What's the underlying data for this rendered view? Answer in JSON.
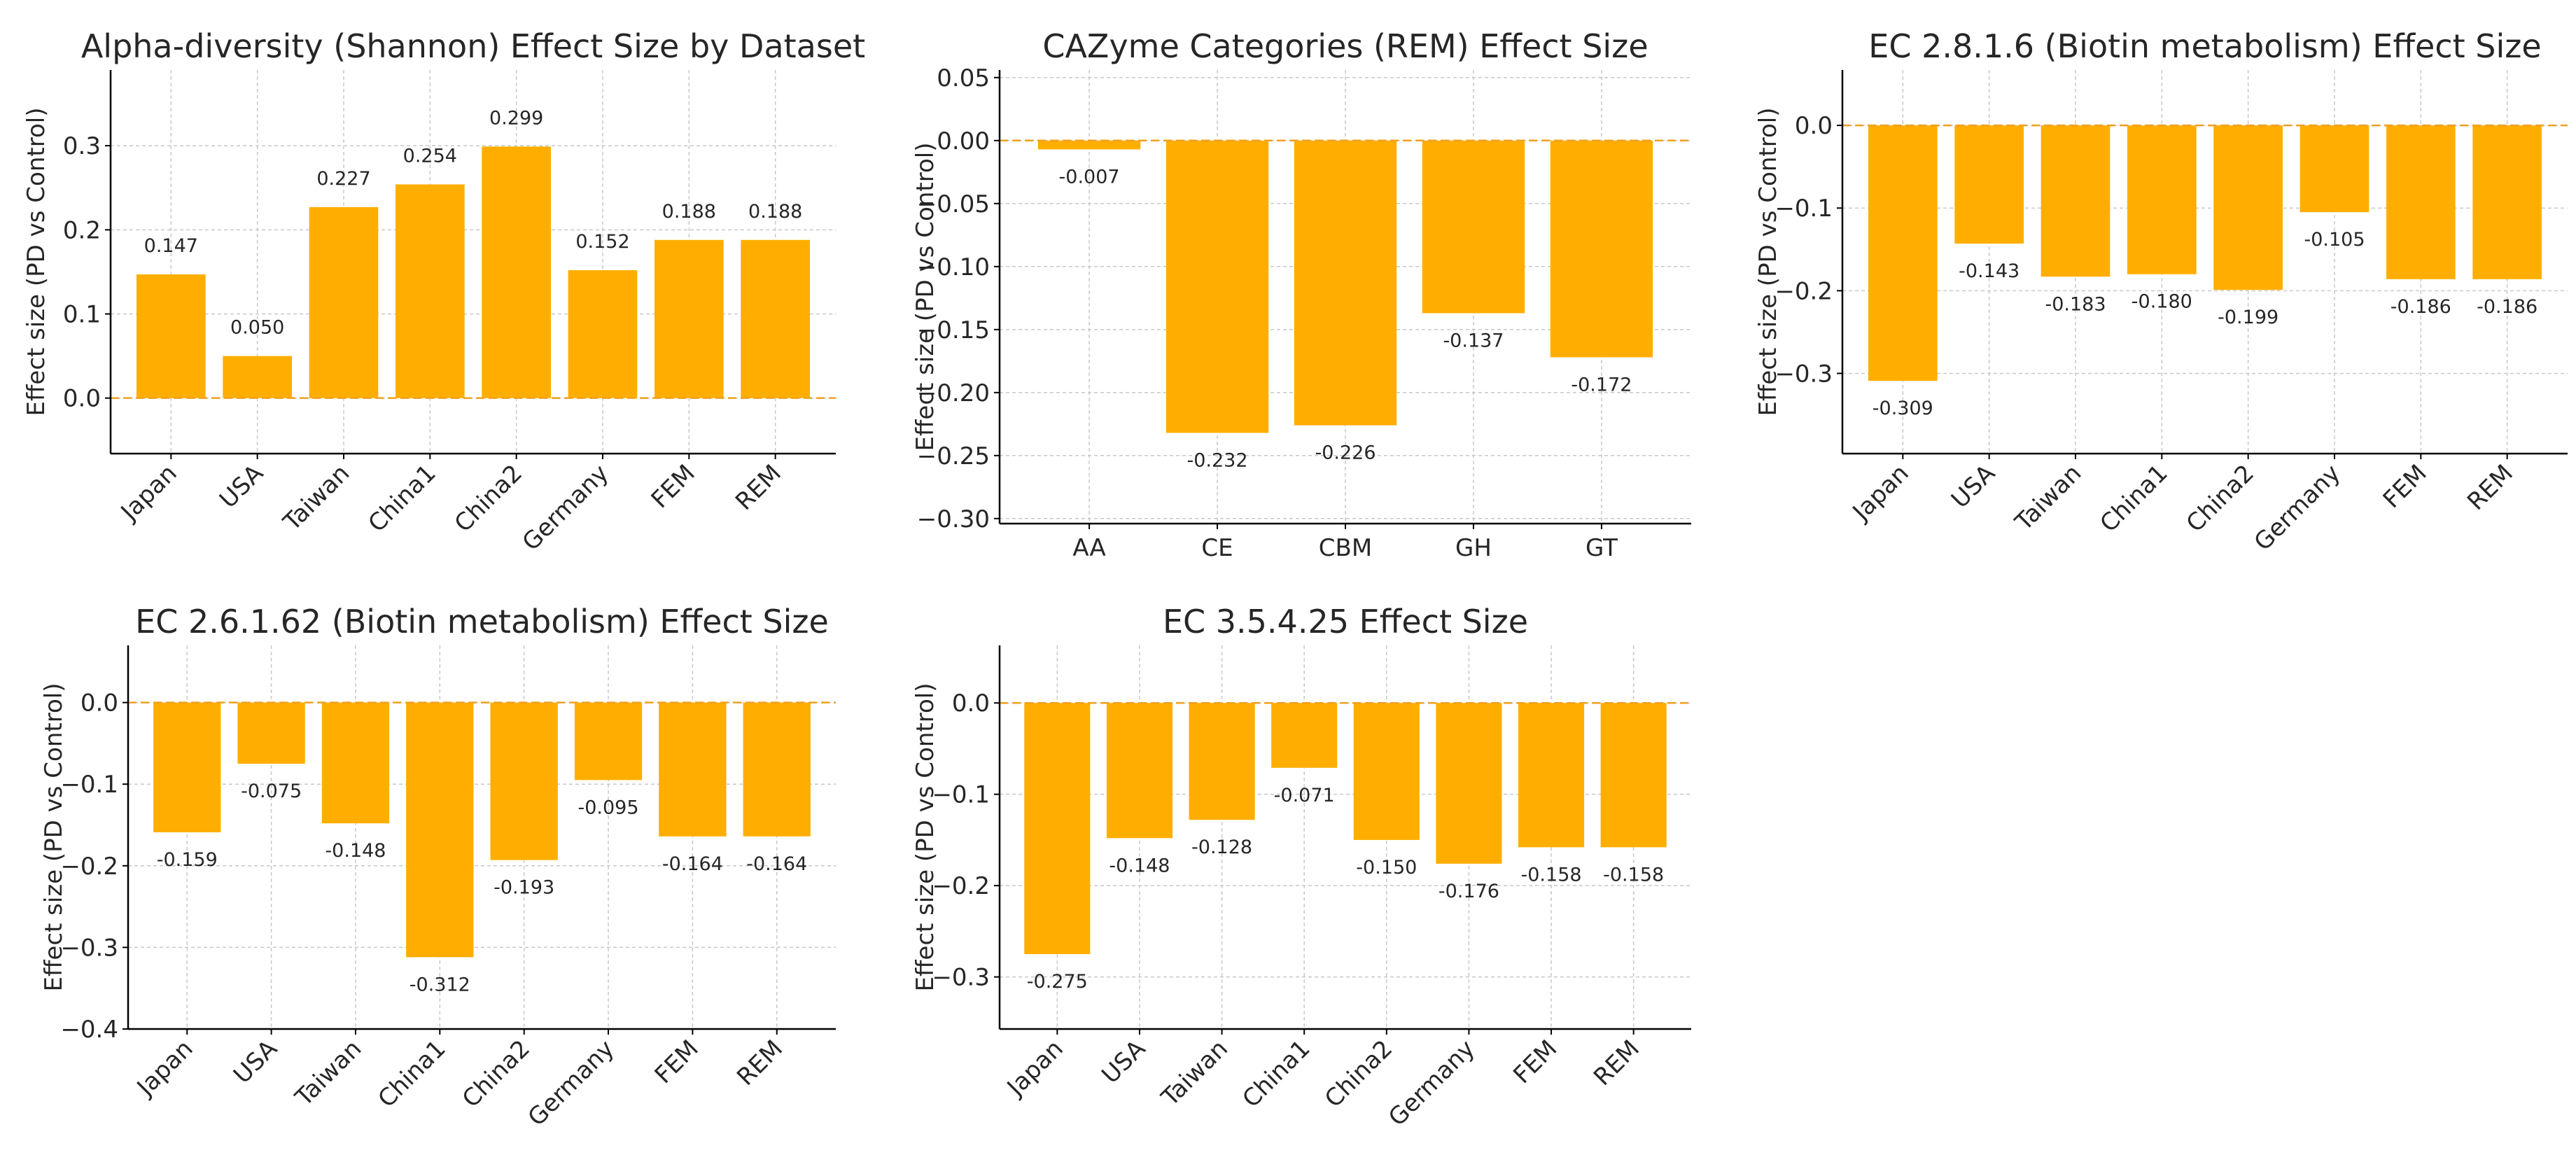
{
  "style": {
    "bar_color": "#FFAE00",
    "zero_line_color": "#F0A020",
    "grid_color": "#C8C8C8",
    "axis_color": "#000000",
    "text_color": "#262626"
  },
  "chart_data": [
    {
      "type": "bar",
      "title": "Alpha-diversity (Shannon) Effect Size by Dataset",
      "xlabel": "",
      "ylabel": "Effect size (PD vs Control)",
      "categories": [
        "Japan",
        "USA",
        "Taiwan",
        "China1",
        "China2",
        "Germany",
        "FEM",
        "REM"
      ],
      "values": [
        0.147,
        0.05,
        0.227,
        0.254,
        0.299,
        0.152,
        0.188,
        0.188
      ],
      "value_labels": [
        "0.147",
        "0.050",
        "0.227",
        "0.254",
        "0.299",
        "0.152",
        "0.188",
        "0.188"
      ],
      "ylim": [
        -0.066,
        0.39
      ],
      "yticks": [
        0.0,
        0.1,
        0.2,
        0.3
      ],
      "ytick_labels": [
        "0.0",
        "0.1",
        "0.2",
        "0.3"
      ],
      "xtick_rotation": 45,
      "grid": true,
      "zero_line": "dashed"
    },
    {
      "type": "bar",
      "title": "CAZyme Categories (REM) Effect Size",
      "xlabel": "",
      "ylabel": "Effect size (PD vs Control)",
      "categories": [
        "AA",
        "CE",
        "CBM",
        "GH",
        "GT"
      ],
      "values": [
        -0.007,
        -0.232,
        -0.226,
        -0.137,
        -0.172
      ],
      "value_labels": [
        "-0.007",
        "-0.232",
        "-0.226",
        "-0.137",
        "-0.172"
      ],
      "ylim": [
        -0.304,
        0.056
      ],
      "yticks": [
        0.05,
        0.0,
        -0.05,
        -0.1,
        -0.15,
        -0.2,
        -0.25,
        -0.3
      ],
      "ytick_labels": [
        "0.05",
        "0.00",
        "−0.05",
        "−0.10",
        "−0.15",
        "−0.20",
        "−0.25",
        "−0.30"
      ],
      "xtick_rotation": 0,
      "grid": true,
      "zero_line": "dashed"
    },
    {
      "type": "bar",
      "title": "EC 2.8.1.6 (Biotin metabolism) Effect Size",
      "xlabel": "",
      "ylabel": "Effect size (PD vs Control)",
      "categories": [
        "Japan",
        "USA",
        "Taiwan",
        "China1",
        "China2",
        "Germany",
        "FEM",
        "REM"
      ],
      "values": [
        -0.309,
        -0.143,
        -0.183,
        -0.18,
        -0.199,
        -0.105,
        -0.186,
        -0.186
      ],
      "value_labels": [
        "-0.309",
        "-0.143",
        "-0.183",
        "-0.180",
        "-0.199",
        "-0.105",
        "-0.186",
        "-0.186"
      ],
      "ylim": [
        -0.397,
        0.067
      ],
      "yticks": [
        0.0,
        -0.1,
        -0.2,
        -0.3
      ],
      "ytick_labels": [
        "0.0",
        "−0.1",
        "−0.2",
        "−0.3"
      ],
      "xtick_rotation": 45,
      "grid": true,
      "zero_line": "dashed"
    },
    {
      "type": "bar",
      "title": "EC 2.6.1.62 (Biotin metabolism) Effect Size",
      "xlabel": "",
      "ylabel": "Effect size (PD vs Control)",
      "categories": [
        "Japan",
        "USA",
        "Taiwan",
        "China1",
        "China2",
        "Germany",
        "FEM",
        "REM"
      ],
      "values": [
        -0.159,
        -0.075,
        -0.148,
        -0.312,
        -0.193,
        -0.095,
        -0.164,
        -0.164
      ],
      "value_labels": [
        "-0.159",
        "-0.075",
        "-0.148",
        "-0.312",
        "-0.193",
        "-0.095",
        "-0.164",
        "-0.164"
      ],
      "ylim": [
        -0.4,
        0.07
      ],
      "yticks": [
        0.0,
        -0.1,
        -0.2,
        -0.3,
        -0.4
      ],
      "ytick_labels": [
        "0.0",
        "−0.1",
        "−0.2",
        "−0.3",
        "−0.4"
      ],
      "xtick_rotation": 45,
      "grid": true,
      "zero_line": "dashed"
    },
    {
      "type": "bar",
      "title": "EC 3.5.4.25 Effect Size",
      "xlabel": "",
      "ylabel": "Effect size (PD vs Control)",
      "categories": [
        "Japan",
        "USA",
        "Taiwan",
        "China1",
        "China2",
        "Germany",
        "FEM",
        "REM"
      ],
      "values": [
        -0.275,
        -0.148,
        -0.128,
        -0.071,
        -0.15,
        -0.176,
        -0.158,
        -0.158
      ],
      "value_labels": [
        "-0.275",
        "-0.148",
        "-0.128",
        "-0.071",
        "-0.150",
        "-0.176",
        "-0.158",
        "-0.158"
      ],
      "ylim": [
        -0.357,
        0.063
      ],
      "yticks": [
        0.0,
        -0.1,
        -0.2,
        -0.3
      ],
      "ytick_labels": [
        "0.0",
        "−0.1",
        "−0.2",
        "−0.3"
      ],
      "xtick_rotation": 45,
      "grid": true,
      "zero_line": "dashed"
    }
  ]
}
